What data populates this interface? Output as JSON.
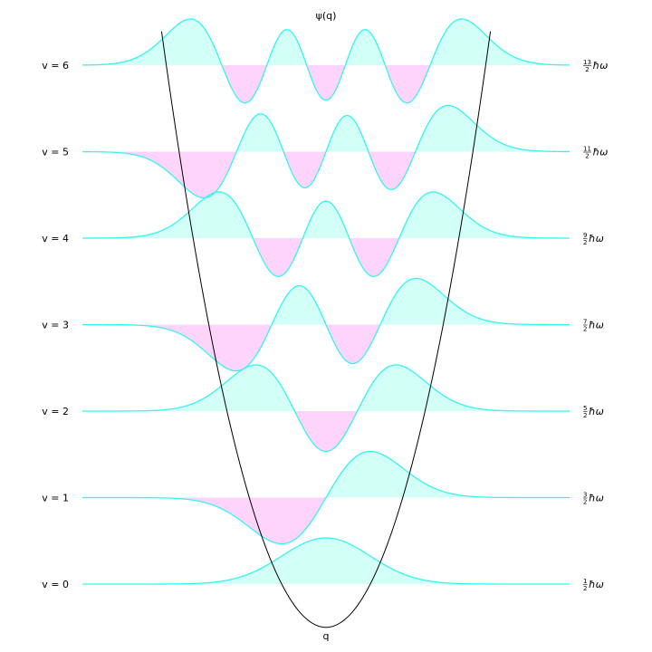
{
  "chart_data": {
    "type": "line",
    "title": "ψ(q)",
    "xlabel": "q",
    "ylabel": "",
    "xlim": [
      -5.5,
      5.5
    ],
    "potential": "parabola V(q) = q²/2",
    "grid": false,
    "legend": "none",
    "colors": {
      "wavefunction": "#33f5f0",
      "positive_fill": "#d2fff6",
      "negative_fill": "#ffd4fb",
      "potential": "#000000"
    },
    "series": [
      {
        "v": 0,
        "level_label": "v = 0",
        "energy_label": "1/2 ħω",
        "energy": 0.5
      },
      {
        "v": 1,
        "level_label": "v = 1",
        "energy_label": "3/2 ħω",
        "energy": 1.5
      },
      {
        "v": 2,
        "level_label": "v = 2",
        "energy_label": "5/2 ħω",
        "energy": 2.5
      },
      {
        "v": 3,
        "level_label": "v = 3",
        "energy_label": "7/2 ħω",
        "energy": 3.5
      },
      {
        "v": 4,
        "level_label": "v = 4",
        "energy_label": "9/2 ħω",
        "energy": 4.5
      },
      {
        "v": 5,
        "level_label": "v = 5",
        "energy_label": "11/2 ħω",
        "energy": 5.5
      },
      {
        "v": 6,
        "level_label": "v = 6",
        "energy_label": "13/2 ħω",
        "energy": 6.5
      }
    ]
  }
}
